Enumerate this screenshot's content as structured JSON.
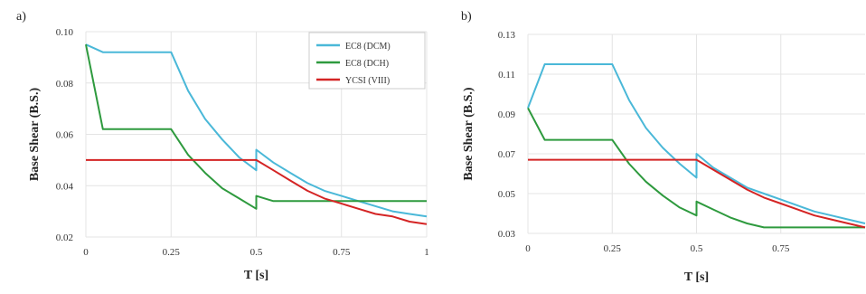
{
  "chart_data": [
    {
      "type": "line",
      "panel_label": "a)",
      "xlabel": "T [s]",
      "ylabel": "Base Shear (B.S.)",
      "xlim": [
        0,
        1
      ],
      "ylim": [
        0.02,
        0.1
      ],
      "xticks": [
        0,
        0.25,
        0.5,
        0.75,
        1
      ],
      "xtick_labels": [
        "0",
        "0.25",
        "0.5",
        "0.75",
        "1"
      ],
      "yticks": [
        0.02,
        0.04,
        0.06,
        0.08,
        0.1
      ],
      "ytick_labels": [
        "0.02",
        "0.04",
        "0.06",
        "0.08",
        "0.10"
      ],
      "grid": true,
      "legend_position": "top-right",
      "series": [
        {
          "name": "EC8 (DCM)",
          "color": "#4ab8d8",
          "x": [
            0,
            0.05,
            0.1,
            0.15,
            0.2,
            0.25,
            0.3,
            0.35,
            0.4,
            0.45,
            0.5,
            0.5,
            0.55,
            0.6,
            0.65,
            0.7,
            0.75,
            0.8,
            0.85,
            0.9,
            0.95,
            1.0
          ],
          "y": [
            0.095,
            0.092,
            0.092,
            0.092,
            0.092,
            0.092,
            0.077,
            0.066,
            0.058,
            0.051,
            0.046,
            0.054,
            0.049,
            0.045,
            0.041,
            0.038,
            0.036,
            0.034,
            0.032,
            0.03,
            0.029,
            0.028
          ]
        },
        {
          "name": "EC8 (DCH)",
          "color": "#2e9a3e",
          "x": [
            0,
            0.05,
            0.1,
            0.15,
            0.2,
            0.25,
            0.3,
            0.35,
            0.4,
            0.45,
            0.5,
            0.5,
            0.55,
            0.6,
            0.65,
            0.7,
            0.75,
            0.8,
            0.85,
            0.9,
            0.95,
            1.0
          ],
          "y": [
            0.095,
            0.062,
            0.062,
            0.062,
            0.062,
            0.062,
            0.052,
            0.045,
            0.039,
            0.035,
            0.031,
            0.036,
            0.034,
            0.034,
            0.034,
            0.034,
            0.034,
            0.034,
            0.034,
            0.034,
            0.034,
            0.034
          ]
        },
        {
          "name": "YCSI (VIII)",
          "color": "#d42424",
          "x": [
            0,
            0.1,
            0.2,
            0.3,
            0.4,
            0.5,
            0.55,
            0.6,
            0.65,
            0.7,
            0.75,
            0.8,
            0.85,
            0.9,
            0.95,
            1.0
          ],
          "y": [
            0.05,
            0.05,
            0.05,
            0.05,
            0.05,
            0.05,
            0.046,
            0.042,
            0.038,
            0.035,
            0.033,
            0.031,
            0.029,
            0.028,
            0.026,
            0.025
          ]
        }
      ]
    },
    {
      "type": "line",
      "panel_label": "b)",
      "xlabel": "T [s]",
      "ylabel": "Base Shear (B.S.)",
      "xlim": [
        0,
        1
      ],
      "ylim": [
        0.03,
        0.13
      ],
      "xticks": [
        0,
        0.25,
        0.5,
        0.75
      ],
      "xtick_labels": [
        "0",
        "0.25",
        "0.5",
        "0.75"
      ],
      "yticks": [
        0.03,
        0.05,
        0.07,
        0.09,
        0.11,
        0.13
      ],
      "ytick_labels": [
        "0.03",
        "0.05",
        "0.07",
        "0.09",
        "0.11",
        "0.13"
      ],
      "grid": true,
      "series": [
        {
          "name": "EC8 (DCM)",
          "color": "#4ab8d8",
          "x": [
            0,
            0.05,
            0.1,
            0.15,
            0.2,
            0.25,
            0.3,
            0.35,
            0.4,
            0.45,
            0.5,
            0.5,
            0.55,
            0.6,
            0.65,
            0.7,
            0.75,
            0.8,
            0.85,
            0.9,
            0.95,
            1.0
          ],
          "y": [
            0.093,
            0.115,
            0.115,
            0.115,
            0.115,
            0.115,
            0.097,
            0.083,
            0.073,
            0.065,
            0.058,
            0.07,
            0.063,
            0.058,
            0.053,
            0.05,
            0.047,
            0.044,
            0.041,
            0.039,
            0.037,
            0.035
          ]
        },
        {
          "name": "EC8 (DCH)",
          "color": "#2e9a3e",
          "x": [
            0,
            0.05,
            0.1,
            0.15,
            0.2,
            0.25,
            0.3,
            0.35,
            0.4,
            0.45,
            0.5,
            0.5,
            0.55,
            0.6,
            0.65,
            0.7,
            0.75,
            0.8,
            0.85,
            0.9,
            0.95,
            1.0
          ],
          "y": [
            0.093,
            0.077,
            0.077,
            0.077,
            0.077,
            0.077,
            0.065,
            0.056,
            0.049,
            0.043,
            0.039,
            0.046,
            0.042,
            0.038,
            0.035,
            0.033,
            0.033,
            0.033,
            0.033,
            0.033,
            0.033,
            0.033
          ]
        },
        {
          "name": "YCSI (VIII)",
          "color": "#d42424",
          "x": [
            0,
            0.1,
            0.2,
            0.3,
            0.4,
            0.5,
            0.55,
            0.6,
            0.65,
            0.7,
            0.75,
            0.8,
            0.85,
            0.9,
            0.95,
            1.0
          ],
          "y": [
            0.067,
            0.067,
            0.067,
            0.067,
            0.067,
            0.067,
            0.062,
            0.057,
            0.052,
            0.048,
            0.045,
            0.042,
            0.039,
            0.037,
            0.035,
            0.033
          ]
        }
      ]
    }
  ]
}
